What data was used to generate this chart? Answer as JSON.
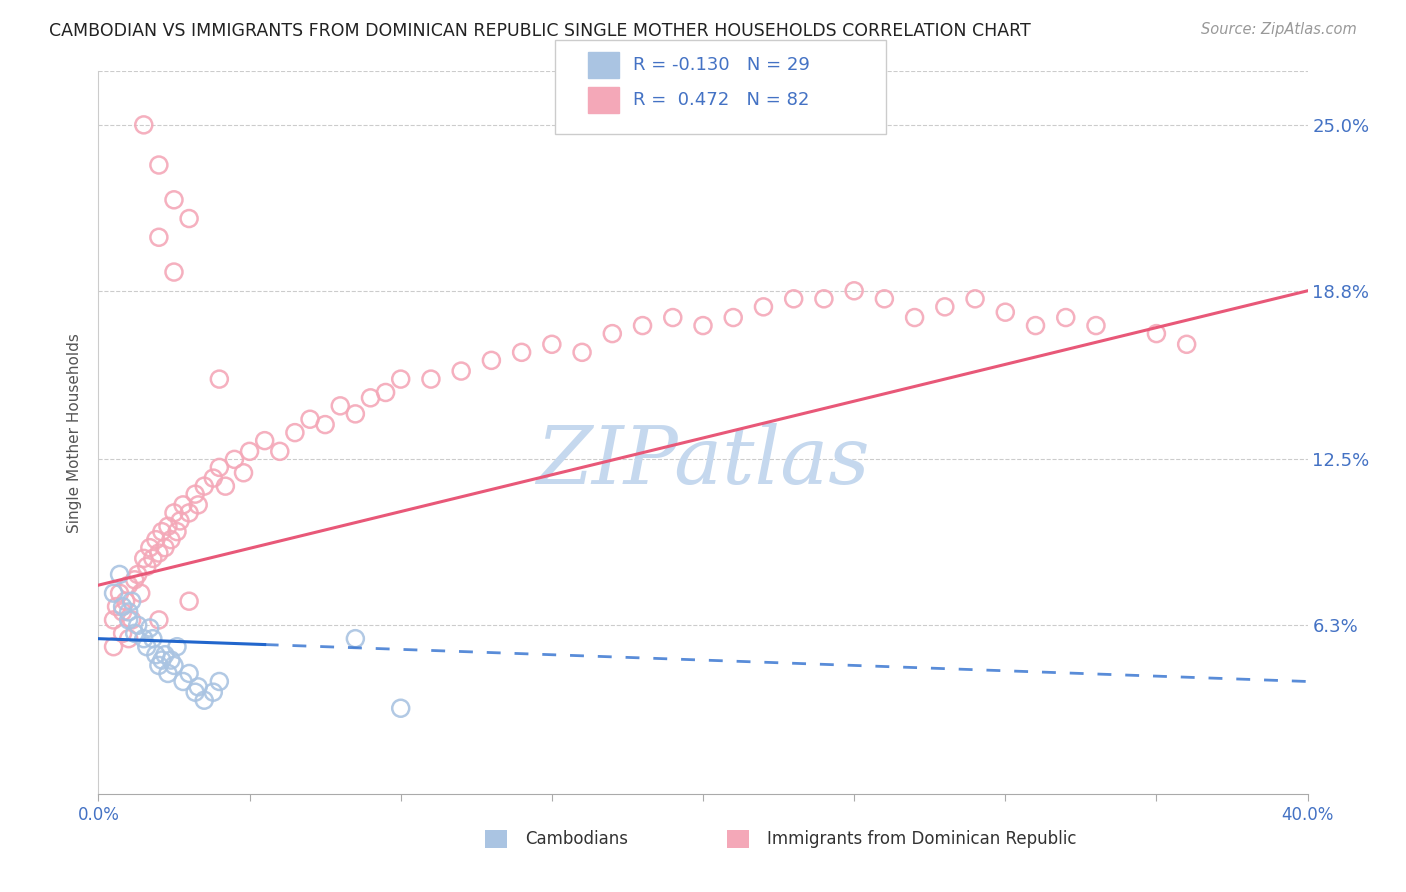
{
  "title": "CAMBODIAN VS IMMIGRANTS FROM DOMINICAN REPUBLIC SINGLE MOTHER HOUSEHOLDS CORRELATION CHART",
  "source": "Source: ZipAtlas.com",
  "ylabel": "Single Mother Households",
  "ytick_labels": [
    "6.3%",
    "12.5%",
    "18.8%",
    "25.0%"
  ],
  "ytick_values": [
    0.063,
    0.125,
    0.188,
    0.25
  ],
  "xlim": [
    0.0,
    0.4
  ],
  "ylim": [
    0.0,
    0.27
  ],
  "cambodian_color": "#aac4e2",
  "dominican_color": "#f4a8b8",
  "cambodian_line_color": "#2266cc",
  "dominican_line_color": "#e85878",
  "watermark_color": "#c5d8ee",
  "R_cambodian": -0.13,
  "N_cambodian": 29,
  "R_dominican": 0.472,
  "N_dominican": 82,
  "cam_line_start_x": 0.0,
  "cam_line_end_x": 0.4,
  "cam_line_start_y": 0.058,
  "cam_line_end_y": 0.042,
  "cam_line_solid_end_x": 0.055,
  "dom_line_start_x": 0.0,
  "dom_line_end_x": 0.4,
  "dom_line_start_y": 0.078,
  "dom_line_end_y": 0.188,
  "cambodian_scatter": [
    [
      0.005,
      0.075
    ],
    [
      0.007,
      0.082
    ],
    [
      0.008,
      0.07
    ],
    [
      0.01,
      0.065
    ],
    [
      0.01,
      0.068
    ],
    [
      0.011,
      0.072
    ],
    [
      0.012,
      0.06
    ],
    [
      0.013,
      0.063
    ],
    [
      0.015,
      0.058
    ],
    [
      0.016,
      0.055
    ],
    [
      0.017,
      0.062
    ],
    [
      0.018,
      0.058
    ],
    [
      0.019,
      0.052
    ],
    [
      0.02,
      0.048
    ],
    [
      0.021,
      0.05
    ],
    [
      0.022,
      0.052
    ],
    [
      0.023,
      0.045
    ],
    [
      0.024,
      0.05
    ],
    [
      0.025,
      0.048
    ],
    [
      0.026,
      0.055
    ],
    [
      0.028,
      0.042
    ],
    [
      0.03,
      0.045
    ],
    [
      0.032,
      0.038
    ],
    [
      0.033,
      0.04
    ],
    [
      0.035,
      0.035
    ],
    [
      0.038,
      0.038
    ],
    [
      0.04,
      0.042
    ],
    [
      0.085,
      0.058
    ],
    [
      0.1,
      0.032
    ]
  ],
  "dominican_scatter": [
    [
      0.005,
      0.065
    ],
    [
      0.006,
      0.07
    ],
    [
      0.007,
      0.075
    ],
    [
      0.008,
      0.068
    ],
    [
      0.009,
      0.072
    ],
    [
      0.01,
      0.078
    ],
    [
      0.011,
      0.065
    ],
    [
      0.012,
      0.08
    ],
    [
      0.013,
      0.082
    ],
    [
      0.014,
      0.075
    ],
    [
      0.015,
      0.088
    ],
    [
      0.016,
      0.085
    ],
    [
      0.017,
      0.092
    ],
    [
      0.018,
      0.088
    ],
    [
      0.019,
      0.095
    ],
    [
      0.02,
      0.09
    ],
    [
      0.021,
      0.098
    ],
    [
      0.022,
      0.092
    ],
    [
      0.023,
      0.1
    ],
    [
      0.024,
      0.095
    ],
    [
      0.025,
      0.105
    ],
    [
      0.026,
      0.098
    ],
    [
      0.027,
      0.102
    ],
    [
      0.028,
      0.108
    ],
    [
      0.03,
      0.105
    ],
    [
      0.032,
      0.112
    ],
    [
      0.033,
      0.108
    ],
    [
      0.035,
      0.115
    ],
    [
      0.038,
      0.118
    ],
    [
      0.04,
      0.122
    ],
    [
      0.042,
      0.115
    ],
    [
      0.045,
      0.125
    ],
    [
      0.048,
      0.12
    ],
    [
      0.05,
      0.128
    ],
    [
      0.055,
      0.132
    ],
    [
      0.06,
      0.128
    ],
    [
      0.065,
      0.135
    ],
    [
      0.07,
      0.14
    ],
    [
      0.075,
      0.138
    ],
    [
      0.08,
      0.145
    ],
    [
      0.085,
      0.142
    ],
    [
      0.09,
      0.148
    ],
    [
      0.095,
      0.15
    ],
    [
      0.1,
      0.155
    ],
    [
      0.11,
      0.155
    ],
    [
      0.12,
      0.158
    ],
    [
      0.13,
      0.162
    ],
    [
      0.14,
      0.165
    ],
    [
      0.15,
      0.168
    ],
    [
      0.16,
      0.165
    ],
    [
      0.17,
      0.172
    ],
    [
      0.18,
      0.175
    ],
    [
      0.19,
      0.178
    ],
    [
      0.2,
      0.175
    ],
    [
      0.21,
      0.178
    ],
    [
      0.22,
      0.182
    ],
    [
      0.23,
      0.185
    ],
    [
      0.24,
      0.185
    ],
    [
      0.25,
      0.188
    ],
    [
      0.26,
      0.185
    ],
    [
      0.27,
      0.178
    ],
    [
      0.28,
      0.182
    ],
    [
      0.29,
      0.185
    ],
    [
      0.3,
      0.18
    ],
    [
      0.31,
      0.175
    ],
    [
      0.32,
      0.178
    ],
    [
      0.33,
      0.175
    ],
    [
      0.35,
      0.172
    ],
    [
      0.36,
      0.168
    ],
    [
      0.005,
      0.055
    ],
    [
      0.008,
      0.06
    ],
    [
      0.01,
      0.058
    ],
    [
      0.02,
      0.065
    ],
    [
      0.03,
      0.072
    ],
    [
      0.015,
      0.25
    ],
    [
      0.02,
      0.235
    ],
    [
      0.025,
      0.222
    ],
    [
      0.03,
      0.215
    ],
    [
      0.02,
      0.208
    ],
    [
      0.025,
      0.195
    ],
    [
      0.04,
      0.155
    ]
  ]
}
